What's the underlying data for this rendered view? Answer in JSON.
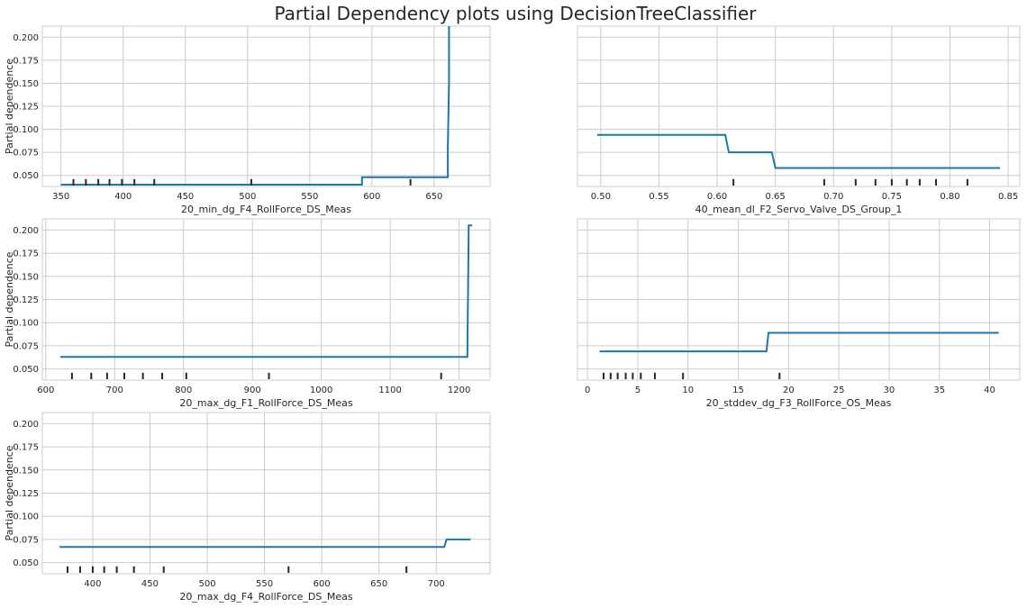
{
  "chart_data": {
    "type": "line",
    "title": "Partial Dependency plots  using DecisionTreeClassifier",
    "ylabel": "Partial dependence",
    "ylim": [
      0.038,
      0.212
    ],
    "yticks": [
      0.05,
      0.075,
      0.1,
      0.125,
      0.15,
      0.175,
      0.2
    ],
    "ytick_labels": [
      "0.050",
      "0.075",
      "0.100",
      "0.125",
      "0.150",
      "0.175",
      "0.200"
    ],
    "line_color": "#1f77a4",
    "panels": [
      {
        "id": "p1",
        "xlabel": "20_min_dg_F4_RollForce_DS_Meas",
        "show_ylabels": true,
        "xlim": [
          335,
          695
        ],
        "xticks": [
          350,
          400,
          450,
          500,
          550,
          600,
          650
        ],
        "xtick_labels": [
          "350",
          "400",
          "450",
          "500",
          "550",
          "600",
          "650"
        ],
        "x": [
          350,
          592,
          592,
          661,
          661,
          662,
          662
        ],
        "y": [
          0.04,
          0.04,
          0.048,
          0.048,
          0.08,
          0.15,
          0.22
        ],
        "rug": [
          360,
          370,
          380,
          389,
          399,
          409,
          425,
          503,
          631
        ]
      },
      {
        "id": "p2",
        "xlabel": "40_mean_dl_F2_Servo_Valve_DS_Group_1",
        "show_ylabels": false,
        "xlim": [
          0.48,
          0.86
        ],
        "xticks": [
          0.5,
          0.55,
          0.6,
          0.65,
          0.7,
          0.75,
          0.8,
          0.85
        ],
        "xtick_labels": [
          "0.50",
          "0.55",
          "0.60",
          "0.65",
          "0.70",
          "0.75",
          "0.80",
          "0.85"
        ],
        "x": [
          0.497,
          0.607,
          0.61,
          0.647,
          0.65,
          0.843
        ],
        "y": [
          0.094,
          0.094,
          0.075,
          0.075,
          0.058,
          0.058
        ],
        "rug": [
          0.614,
          0.692,
          0.719,
          0.736,
          0.75,
          0.763,
          0.774,
          0.788,
          0.815
        ]
      },
      {
        "id": "p3",
        "xlabel": "20_max_dg_F1_RollForce_DS_Meas",
        "show_ylabels": true,
        "xlim": [
          595,
          1245
        ],
        "xticks": [
          600,
          700,
          800,
          900,
          1000,
          1100,
          1200
        ],
        "xtick_labels": [
          "600",
          "700",
          "800",
          "900",
          "1000",
          "1100",
          "1200"
        ],
        "x": [
          621,
          1212,
          1214,
          1219
        ],
        "y": [
          0.063,
          0.063,
          0.205,
          0.205
        ],
        "rug": [
          638,
          666,
          689,
          714,
          741,
          769,
          804,
          924,
          1174
        ]
      },
      {
        "id": "p4",
        "xlabel": "20_stddev_dg_F3_RollForce_OS_Meas",
        "show_ylabels": false,
        "xlim": [
          -1,
          43
        ],
        "xticks": [
          0,
          5,
          10,
          15,
          20,
          25,
          30,
          35,
          40
        ],
        "xtick_labels": [
          "0",
          "5",
          "10",
          "15",
          "20",
          "25",
          "30",
          "35",
          "40"
        ],
        "x": [
          1.2,
          17.8,
          18.0,
          40.9
        ],
        "y": [
          0.069,
          0.069,
          0.089,
          0.089
        ],
        "rug": [
          1.6,
          2.3,
          3.0,
          3.8,
          4.5,
          5.3,
          6.7,
          9.5,
          19.1
        ]
      },
      {
        "id": "p5",
        "xlabel": "20_max_dg_F4_RollForce_DS_Meas",
        "show_ylabels": true,
        "xlim": [
          356,
          747
        ],
        "xticks": [
          400,
          450,
          500,
          550,
          600,
          650,
          700
        ],
        "xtick_labels": [
          "400",
          "450",
          "500",
          "550",
          "600",
          "650",
          "700"
        ],
        "x": [
          371,
          707,
          709,
          730
        ],
        "y": [
          0.067,
          0.067,
          0.075,
          0.075
        ],
        "rug": [
          378,
          389,
          400,
          410,
          421,
          436,
          462,
          571,
          674
        ]
      }
    ]
  }
}
